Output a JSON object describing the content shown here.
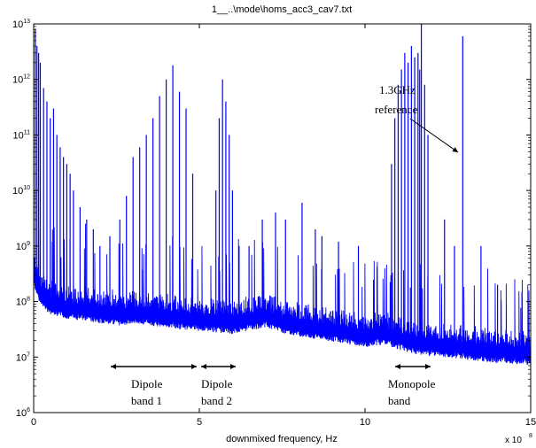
{
  "chart_data": {
    "type": "line",
    "title": "1__..\\mode\\homs_acc3_cav7.txt",
    "xlabel": "downmixed frequency, Hz",
    "x_multiplier": "x 10",
    "x_multiplier_exp": "8",
    "ylabel": "",
    "xlim": [
      0,
      15
    ],
    "ylim": [
      1000000,
      10000000000000
    ],
    "y_scale": "log",
    "grid": false,
    "series_color": "#0000ff",
    "x_ticks": [
      {
        "value": 0,
        "label": "0"
      },
      {
        "value": 5,
        "label": "5"
      },
      {
        "value": 10,
        "label": "10"
      },
      {
        "value": 15,
        "label": "15"
      }
    ],
    "y_ticks": [
      {
        "value": 1000000,
        "base": "10",
        "exp": "6"
      },
      {
        "value": 10000000,
        "base": "10",
        "exp": "7"
      },
      {
        "value": 100000000,
        "base": "10",
        "exp": "8"
      },
      {
        "value": 1000000000,
        "base": "10",
        "exp": "9"
      },
      {
        "value": 10000000000,
        "base": "10",
        "exp": "10"
      },
      {
        "value": 100000000000,
        "base": "10",
        "exp": "11"
      },
      {
        "value": 1000000000000,
        "base": "10",
        "exp": "12"
      },
      {
        "value": 10000000000000,
        "base": "10",
        "exp": "13"
      }
    ],
    "baseline": [
      [
        0,
        300000000
      ],
      [
        0.2,
        130000000
      ],
      [
        0.5,
        90000000
      ],
      [
        1,
        75000000
      ],
      [
        2,
        63000000
      ],
      [
        2.7,
        56000000
      ],
      [
        3,
        62000000
      ],
      [
        4,
        52000000
      ],
      [
        5,
        45000000
      ],
      [
        6,
        40000000
      ],
      [
        6.6,
        46000000
      ],
      [
        7,
        53000000
      ],
      [
        7.5,
        42000000
      ],
      [
        8,
        36000000
      ],
      [
        9,
        29000000
      ],
      [
        10,
        23000000
      ],
      [
        10.6,
        26000000
      ],
      [
        11,
        21000000
      ],
      [
        11.6,
        17000000
      ],
      [
        12,
        16000000
      ],
      [
        13,
        14000000
      ],
      [
        14,
        12000000
      ],
      [
        15,
        11000000
      ]
    ],
    "peaks": [
      [
        0.05,
        8000000000000
      ],
      [
        0.1,
        4000000000000
      ],
      [
        0.15,
        3000000000000
      ],
      [
        0.2,
        2000000000000
      ],
      [
        0.3,
        700000000000
      ],
      [
        0.4,
        400000000000
      ],
      [
        0.5,
        200000000000
      ],
      [
        0.6,
        300000000000
      ],
      [
        0.7,
        100000000000
      ],
      [
        0.8,
        60000000000
      ],
      [
        0.9,
        40000000000
      ],
      [
        1.0,
        30000000000
      ],
      [
        1.1,
        20000000000
      ],
      [
        1.2,
        10000000000
      ],
      [
        1.4,
        5000000000
      ],
      [
        1.6,
        3000000000
      ],
      [
        1.8,
        2000000000
      ],
      [
        2.0,
        1000000000
      ],
      [
        2.3,
        1500000000
      ],
      [
        2.6,
        3000000000
      ],
      [
        2.8,
        8000000000
      ],
      [
        3.0,
        40000000000
      ],
      [
        3.2,
        60000000000
      ],
      [
        3.4,
        100000000000
      ],
      [
        3.6,
        200000000000
      ],
      [
        3.8,
        500000000000
      ],
      [
        4.0,
        1000000000000
      ],
      [
        4.2,
        1800000000000
      ],
      [
        4.4,
        600000000000
      ],
      [
        4.6,
        300000000000
      ],
      [
        4.8,
        20000000000
      ],
      [
        5.5,
        10000000000
      ],
      [
        5.6,
        200000000000
      ],
      [
        5.7,
        1000000000000
      ],
      [
        5.8,
        400000000000
      ],
      [
        5.9,
        100000000000
      ],
      [
        6.0,
        10000000000
      ],
      [
        6.2,
        1000000000
      ],
      [
        6.5,
        1000000000
      ],
      [
        6.9,
        3000000000
      ],
      [
        7.3,
        4000000000
      ],
      [
        7.6,
        3000000000
      ],
      [
        8.1,
        6000000000
      ],
      [
        8.5,
        2000000000
      ],
      [
        8.7,
        1500000000
      ],
      [
        9.2,
        1200000000
      ],
      [
        9.8,
        1000000000
      ],
      [
        10.8,
        30000000000
      ],
      [
        10.9,
        200000000000
      ],
      [
        11.0,
        800000000000
      ],
      [
        11.1,
        1500000000000
      ],
      [
        11.2,
        3000000000000
      ],
      [
        11.3,
        2000000000000
      ],
      [
        11.4,
        4000000000000
      ],
      [
        11.5,
        2500000000000
      ],
      [
        11.6,
        3000000000000
      ],
      [
        11.65,
        1500000000000
      ],
      [
        11.7,
        10000000000000
      ],
      [
        11.8,
        800000000000
      ],
      [
        11.9,
        100000000000
      ],
      [
        12.4,
        3000000000
      ],
      [
        12.7,
        1000000000
      ],
      [
        12.95,
        6000000000000
      ],
      [
        13.5,
        1000000000
      ],
      [
        14.0,
        200000000
      ]
    ],
    "annotations": [
      {
        "id": "reference",
        "lines": [
          "1.3GHz",
          "reference"
        ]
      },
      {
        "id": "dipole1",
        "lines": [
          "Dipole",
          "band  1"
        ],
        "x_from": 2.3,
        "x_to": 5.0
      },
      {
        "id": "dipole2",
        "lines": [
          "Dipole",
          "band 2"
        ],
        "x_from": 5.0,
        "x_to": 6.1
      },
      {
        "id": "monopole",
        "lines": [
          "Monopole",
          "band"
        ],
        "x_from": 11.0,
        "x_to": 12.1
      }
    ]
  }
}
